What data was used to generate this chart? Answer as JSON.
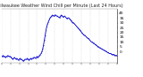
{
  "title": "Milwaukee Weather Wind Chill per Minute (Last 24 Hours)",
  "y_ticks": [
    0,
    5,
    10,
    15,
    20,
    25,
    30,
    35,
    40
  ],
  "ylim": [
    -12,
    44
  ],
  "xlim": [
    0,
    143
  ],
  "background_color": "#ffffff",
  "line_color": "#0000cc",
  "grid_color": "#bbbbbb",
  "values": [
    -5,
    -5,
    -4,
    -5,
    -5,
    -6,
    -5,
    -5,
    -4,
    -5,
    -5,
    -5,
    -6,
    -7,
    -8,
    -7,
    -6,
    -7,
    -8,
    -7,
    -8,
    -9,
    -8,
    -7,
    -8,
    -8,
    -9,
    -10,
    -9,
    -8,
    -8,
    -8,
    -7,
    -8,
    -9,
    -8,
    -7,
    -8,
    -7,
    -7,
    -6,
    -6,
    -7,
    -6,
    -5,
    -6,
    -5,
    -4,
    -3,
    -2,
    0,
    3,
    7,
    12,
    17,
    22,
    26,
    29,
    31,
    33,
    35,
    36,
    37,
    38,
    37,
    37,
    38,
    38,
    37,
    37,
    36,
    36,
    35,
    37,
    38,
    37,
    36,
    36,
    37,
    36,
    35,
    34,
    35,
    35,
    34,
    33,
    32,
    31,
    30,
    30,
    29,
    28,
    27,
    26,
    25,
    24,
    23,
    22,
    21,
    20,
    19,
    18,
    17,
    17,
    16,
    15,
    14,
    14,
    13,
    12,
    11,
    10,
    10,
    9,
    9,
    8,
    7,
    7,
    6,
    5,
    5,
    4,
    4,
    3,
    3,
    2,
    2,
    1,
    1,
    0,
    0,
    -1,
    -1,
    -2,
    -2,
    -2,
    -3,
    -3,
    -3,
    -3,
    -4,
    -4,
    -4,
    -4
  ],
  "x_tick_positions": [
    0,
    11,
    22,
    33,
    44,
    55,
    66,
    77,
    88,
    99,
    110,
    121,
    132,
    143
  ],
  "title_fontsize": 3.5,
  "tick_fontsize": 3.2,
  "line_width": 0.6,
  "markersize": 0.8
}
